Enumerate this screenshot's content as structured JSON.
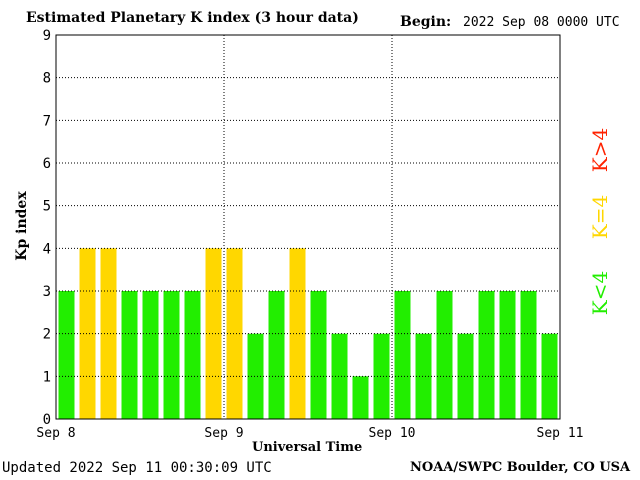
{
  "header": {
    "title": "Estimated Planetary K index (3 hour data)",
    "begin_label": "Begin:",
    "begin_value": "2022 Sep 08 0000 UTC"
  },
  "footer": {
    "updated": "Updated 2022 Sep 11 00:30:09 UTC",
    "source": "NOAA/SWPC Boulder, CO USA"
  },
  "legend": {
    "high": "K>4",
    "mid": "K=4",
    "low": "K<4"
  },
  "colors": {
    "low": "#22ee00",
    "mid": "#ffd700",
    "high": "#ff2200",
    "grid": "#000000"
  },
  "chart_data": {
    "type": "bar",
    "title": "Estimated Planetary K index (3 hour data)",
    "xlabel": "Universal Time",
    "ylabel": "Kp index",
    "ylim": [
      0,
      9
    ],
    "yticks": [
      "0",
      "1",
      "2",
      "3",
      "4",
      "5",
      "6",
      "7",
      "8",
      "9"
    ],
    "x_tick_labels": [
      "Sep 8",
      "Sep 9",
      "Sep 10",
      "Sep 11"
    ],
    "grid": true,
    "values": [
      3,
      4,
      4,
      3,
      3,
      3,
      3,
      4,
      4,
      2,
      3,
      4,
      3,
      2,
      1,
      2,
      3,
      2,
      3,
      2,
      3,
      3,
      3,
      2
    ]
  }
}
